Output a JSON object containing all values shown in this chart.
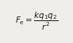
{
  "formula": "$F_{\\mathrm{e}} = \\dfrac{kq_1q_2}{r^2}$",
  "background_color": "#f0eeea",
  "text_color": "#1a1a1a",
  "fontsize": 7.5,
  "figsize": [
    0.92,
    0.55
  ],
  "dpi": 100
}
